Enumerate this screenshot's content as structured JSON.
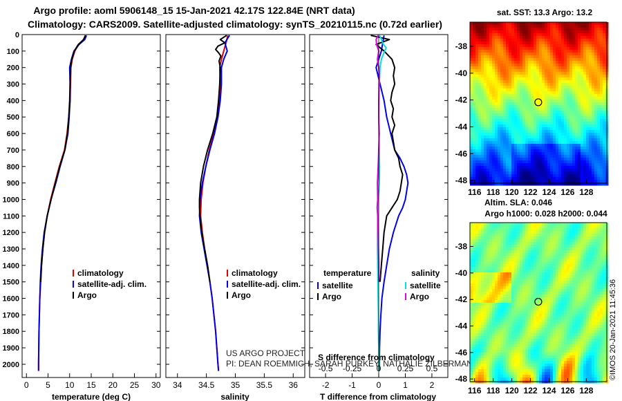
{
  "header": {
    "title_line1": "Argo profile: aoml 5906148_15 15-Jan-2021 42.17S 122.84E (NRT data)",
    "title_line2": "Climatology: CARS2009. Satellite-adjusted climatology: synTS_20210115.nc (0.72d earlier)"
  },
  "credits": {
    "project": "US ARGO PROJECT",
    "pis": "PI: DEAN ROEMMICH, SARAH PURKEY, NATHALIE ZILBERMAN, JOHN GILSON",
    "stamp": "©IMOS 20-Jan-2021 11:45:36"
  },
  "colors": {
    "climatology": "#e00000",
    "satellite": "#0000ee",
    "argo": "#000000",
    "sat_salinity": "#00e0e0",
    "clim_salinity": "#e000e0"
  },
  "chart_data": [
    {
      "type": "line",
      "name": "temperature-profile",
      "xlabel": "temperature (deg C)",
      "xlim": [
        -1,
        31
      ],
      "ylim": [
        2080,
        0
      ],
      "x_ticks": [
        0,
        5,
        10,
        15,
        20,
        25,
        30
      ],
      "depth_ticks": [
        0,
        100,
        200,
        300,
        400,
        500,
        600,
        700,
        800,
        900,
        1000,
        1100,
        1200,
        1300,
        1400,
        1500,
        1600,
        1700,
        1800,
        1900,
        2000
      ],
      "legend": [
        "climatology",
        "satellite-adj. clim.",
        "Argo"
      ],
      "series": [
        {
          "name": "climatology",
          "color": "#e00000",
          "depth": [
            5,
            30,
            60,
            100,
            150,
            200,
            300,
            400,
            500,
            600,
            700,
            800,
            900,
            1000,
            1100,
            1200,
            1300,
            1400,
            1500,
            1600,
            1700,
            1800,
            1900,
            2000,
            2040
          ],
          "x": [
            13.6,
            13.3,
            12.1,
            11.2,
            10.6,
            10.3,
            10.2,
            10.1,
            9.8,
            9.4,
            8.8,
            7.6,
            6.6,
            5.6,
            4.8,
            4.2,
            3.8,
            3.5,
            3.3,
            3.1,
            3.0,
            2.9,
            2.85,
            2.8,
            2.8
          ]
        },
        {
          "name": "satellite",
          "color": "#0000ee",
          "depth": [
            5,
            30,
            60,
            100,
            150,
            200,
            300,
            400,
            500,
            600,
            700,
            800,
            900,
            1000,
            1100,
            1200,
            1300,
            1400,
            1500,
            1600,
            1700,
            1800,
            1900,
            2000,
            2040
          ],
          "x": [
            13.9,
            13.5,
            12.2,
            11.0,
            10.4,
            10.0,
            10.1,
            10.1,
            9.9,
            9.6,
            8.9,
            7.8,
            6.8,
            5.7,
            4.8,
            4.1,
            3.7,
            3.4,
            3.2,
            3.1,
            3.0,
            2.9,
            2.85,
            2.8,
            2.8
          ]
        },
        {
          "name": "argo",
          "color": "#000000",
          "depth": [
            5,
            30,
            60,
            100,
            150,
            200,
            300,
            400,
            500,
            600,
            700,
            800,
            900,
            1000,
            1100,
            1200,
            1300,
            1400,
            1500
          ],
          "x": [
            13.7,
            13.2,
            12.0,
            11.1,
            10.5,
            10.2,
            10.1,
            10.0,
            9.8,
            9.5,
            8.9,
            7.7,
            6.7,
            5.7,
            4.8,
            4.2,
            3.8,
            3.5,
            3.3
          ]
        }
      ]
    },
    {
      "type": "line",
      "name": "salinity-profile",
      "xlabel": "salinity",
      "xlim": [
        33.8,
        36.2
      ],
      "ylim": [
        2080,
        0
      ],
      "x_ticks": [
        34,
        34.5,
        35,
        35.5,
        36
      ],
      "x_tick_labels": [
        "34",
        "34.5",
        "35",
        "35.5",
        "36"
      ],
      "legend": [
        "climatology",
        "satellite-adj. clim.",
        "Argo"
      ],
      "series": [
        {
          "name": "climatology",
          "color": "#e00000",
          "depth": [
            5,
            50,
            100,
            150,
            200,
            300,
            400,
            500,
            600,
            700,
            800,
            900,
            1000,
            1100,
            1200,
            1300,
            1400,
            1500,
            1600,
            1700,
            1800,
            1900,
            2000,
            2040
          ],
          "x": [
            34.87,
            34.84,
            34.8,
            34.76,
            34.73,
            34.74,
            34.72,
            34.69,
            34.63,
            34.55,
            34.49,
            34.44,
            34.41,
            34.4,
            34.43,
            34.47,
            34.52,
            34.56,
            34.6,
            34.63,
            34.66,
            34.68,
            34.7,
            34.71
          ]
        },
        {
          "name": "satellite",
          "color": "#0000ee",
          "depth": [
            5,
            50,
            100,
            150,
            200,
            300,
            400,
            500,
            600,
            700,
            800,
            900,
            1000,
            1100,
            1200,
            1300,
            1400,
            1500,
            1600,
            1700,
            1800,
            1900,
            2000,
            2040
          ],
          "x": [
            34.9,
            34.82,
            34.86,
            34.8,
            34.76,
            34.76,
            34.74,
            34.7,
            34.64,
            34.56,
            34.49,
            34.43,
            34.39,
            34.38,
            34.41,
            34.46,
            34.51,
            34.56,
            34.6,
            34.63,
            34.66,
            34.68,
            34.7,
            34.71
          ]
        },
        {
          "name": "argo",
          "color": "#000000",
          "depth": [
            5,
            30,
            50,
            70,
            90,
            110,
            130,
            160,
            200,
            300,
            400,
            500,
            600,
            700,
            800,
            900,
            1000,
            1050,
            1100,
            1200,
            1300,
            1400,
            1500
          ],
          "x": [
            34.85,
            34.74,
            34.82,
            34.7,
            34.66,
            34.71,
            34.75,
            34.72,
            34.74,
            34.73,
            34.71,
            34.68,
            34.61,
            34.52,
            34.45,
            34.4,
            34.38,
            34.38,
            34.39,
            34.42,
            34.47,
            34.52,
            34.56
          ]
        }
      ]
    },
    {
      "type": "line",
      "name": "difference-profile",
      "xlabel": "T difference from climatology",
      "x2label": "S difference from climatology",
      "xlim": [
        -2.6,
        2.6
      ],
      "ylim": [
        2080,
        0
      ],
      "x_ticks": [
        -2,
        -1,
        0,
        1,
        2
      ],
      "x2_ticks": [
        -0.5,
        -0.25,
        0,
        0.25,
        0.5
      ],
      "x2_tick_labels": [
        "-0.5",
        "-0.25",
        "0",
        "0.25",
        "0.5"
      ],
      "legend_temperature_title": "temperature",
      "legend_salinity_title": "salinity",
      "legend": [
        "satellite",
        "Argo",
        "satellite",
        "Argo"
      ],
      "series": [
        {
          "name": "T satellite",
          "color": "#0000ee",
          "depth": [
            5,
            50,
            100,
            150,
            200,
            300,
            400,
            500,
            600,
            700,
            750,
            800,
            850,
            900,
            950,
            1000,
            1050,
            1100,
            1200,
            1300,
            1400,
            1500,
            1600,
            1700,
            1800,
            1900,
            2000,
            2040
          ],
          "x": [
            0.2,
            0.15,
            0.1,
            0.0,
            -0.1,
            0.05,
            0.2,
            0.3,
            0.45,
            0.6,
            0.8,
            0.95,
            1.05,
            1.1,
            1.05,
            1.0,
            0.9,
            0.75,
            0.55,
            0.4,
            0.3,
            0.2,
            0.12,
            0.08,
            0.05,
            0.03,
            0.02,
            0.02
          ]
        },
        {
          "name": "T argo",
          "color": "#000000",
          "depth": [
            5,
            30,
            60,
            100,
            150,
            200,
            250,
            300,
            350,
            400,
            450,
            500,
            550,
            600,
            650,
            700,
            750,
            800,
            850,
            900,
            950,
            1000,
            1050,
            1100,
            1200,
            1300,
            1400,
            1500
          ],
          "x": [
            -0.3,
            0.4,
            -0.1,
            0.2,
            0.5,
            0.6,
            0.55,
            0.6,
            0.5,
            0.45,
            0.55,
            0.5,
            0.6,
            0.5,
            0.55,
            0.6,
            0.75,
            0.8,
            0.9,
            0.85,
            0.8,
            0.7,
            0.5,
            0.3,
            0.2,
            0.15,
            0.1,
            0.05
          ]
        },
        {
          "name": "S satellite",
          "color": "#00e0e0",
          "depth": [
            5,
            30,
            60,
            80,
            100,
            150,
            200,
            300,
            400,
            500,
            600,
            700,
            800,
            900,
            1000,
            1100,
            1200,
            1300,
            1400,
            1500,
            1600,
            1700,
            1800,
            1900,
            2000,
            2040
          ],
          "x": [
            0.03,
            0.1,
            0.18,
            0.28,
            0.22,
            0.1,
            0.05,
            0.02,
            0.01,
            0.0,
            0.01,
            0.02,
            0.03,
            0.02,
            -0.02,
            -0.04,
            -0.05,
            -0.05,
            -0.04,
            -0.03,
            -0.02,
            -0.01,
            -0.01,
            0.0,
            0.0,
            0.0
          ]
        },
        {
          "name": "S argo",
          "color": "#e000e0",
          "depth": [
            5,
            30,
            60,
            100,
            150,
            200,
            250,
            300,
            400,
            500,
            600,
            700,
            800,
            900,
            1000,
            1050,
            1100,
            1200,
            1300,
            1400,
            1500
          ],
          "x": [
            -0.02,
            -0.1,
            -0.08,
            0.0,
            -0.05,
            0.0,
            0.02,
            0.01,
            0.0,
            0.0,
            0.02,
            0.0,
            -0.02,
            -0.05,
            -0.04,
            -0.06,
            -0.04,
            -0.02,
            -0.01,
            0.0,
            0.0
          ]
        }
      ]
    },
    {
      "type": "heatmap",
      "name": "sst-map",
      "title": "sat. SST: 13.3 Argo: 13.2",
      "x_ticks": [
        116,
        118,
        120,
        122,
        124,
        126,
        128
      ],
      "y_ticks": [
        -38,
        -40,
        -42,
        -44,
        -46,
        -48
      ],
      "xlim": [
        115.5,
        130.2
      ],
      "ylim": [
        -48.2,
        -36.2
      ],
      "profile_lon": 122.84,
      "profile_lat": -42.17
    },
    {
      "type": "heatmap",
      "name": "sla-map",
      "title_line1": "Altim. SLA: 0.046",
      "title_line2": "Argo h1000: 0.028 h2000: 0.044",
      "x_ticks": [
        116,
        118,
        120,
        122,
        124,
        126,
        128
      ],
      "y_ticks": [
        -38,
        -40,
        -42,
        -44,
        -46,
        -48
      ],
      "xlim": [
        115.5,
        130.2
      ],
      "ylim": [
        -48.2,
        -36.2
      ],
      "profile_lon": 122.84,
      "profile_lat": -42.17
    }
  ]
}
